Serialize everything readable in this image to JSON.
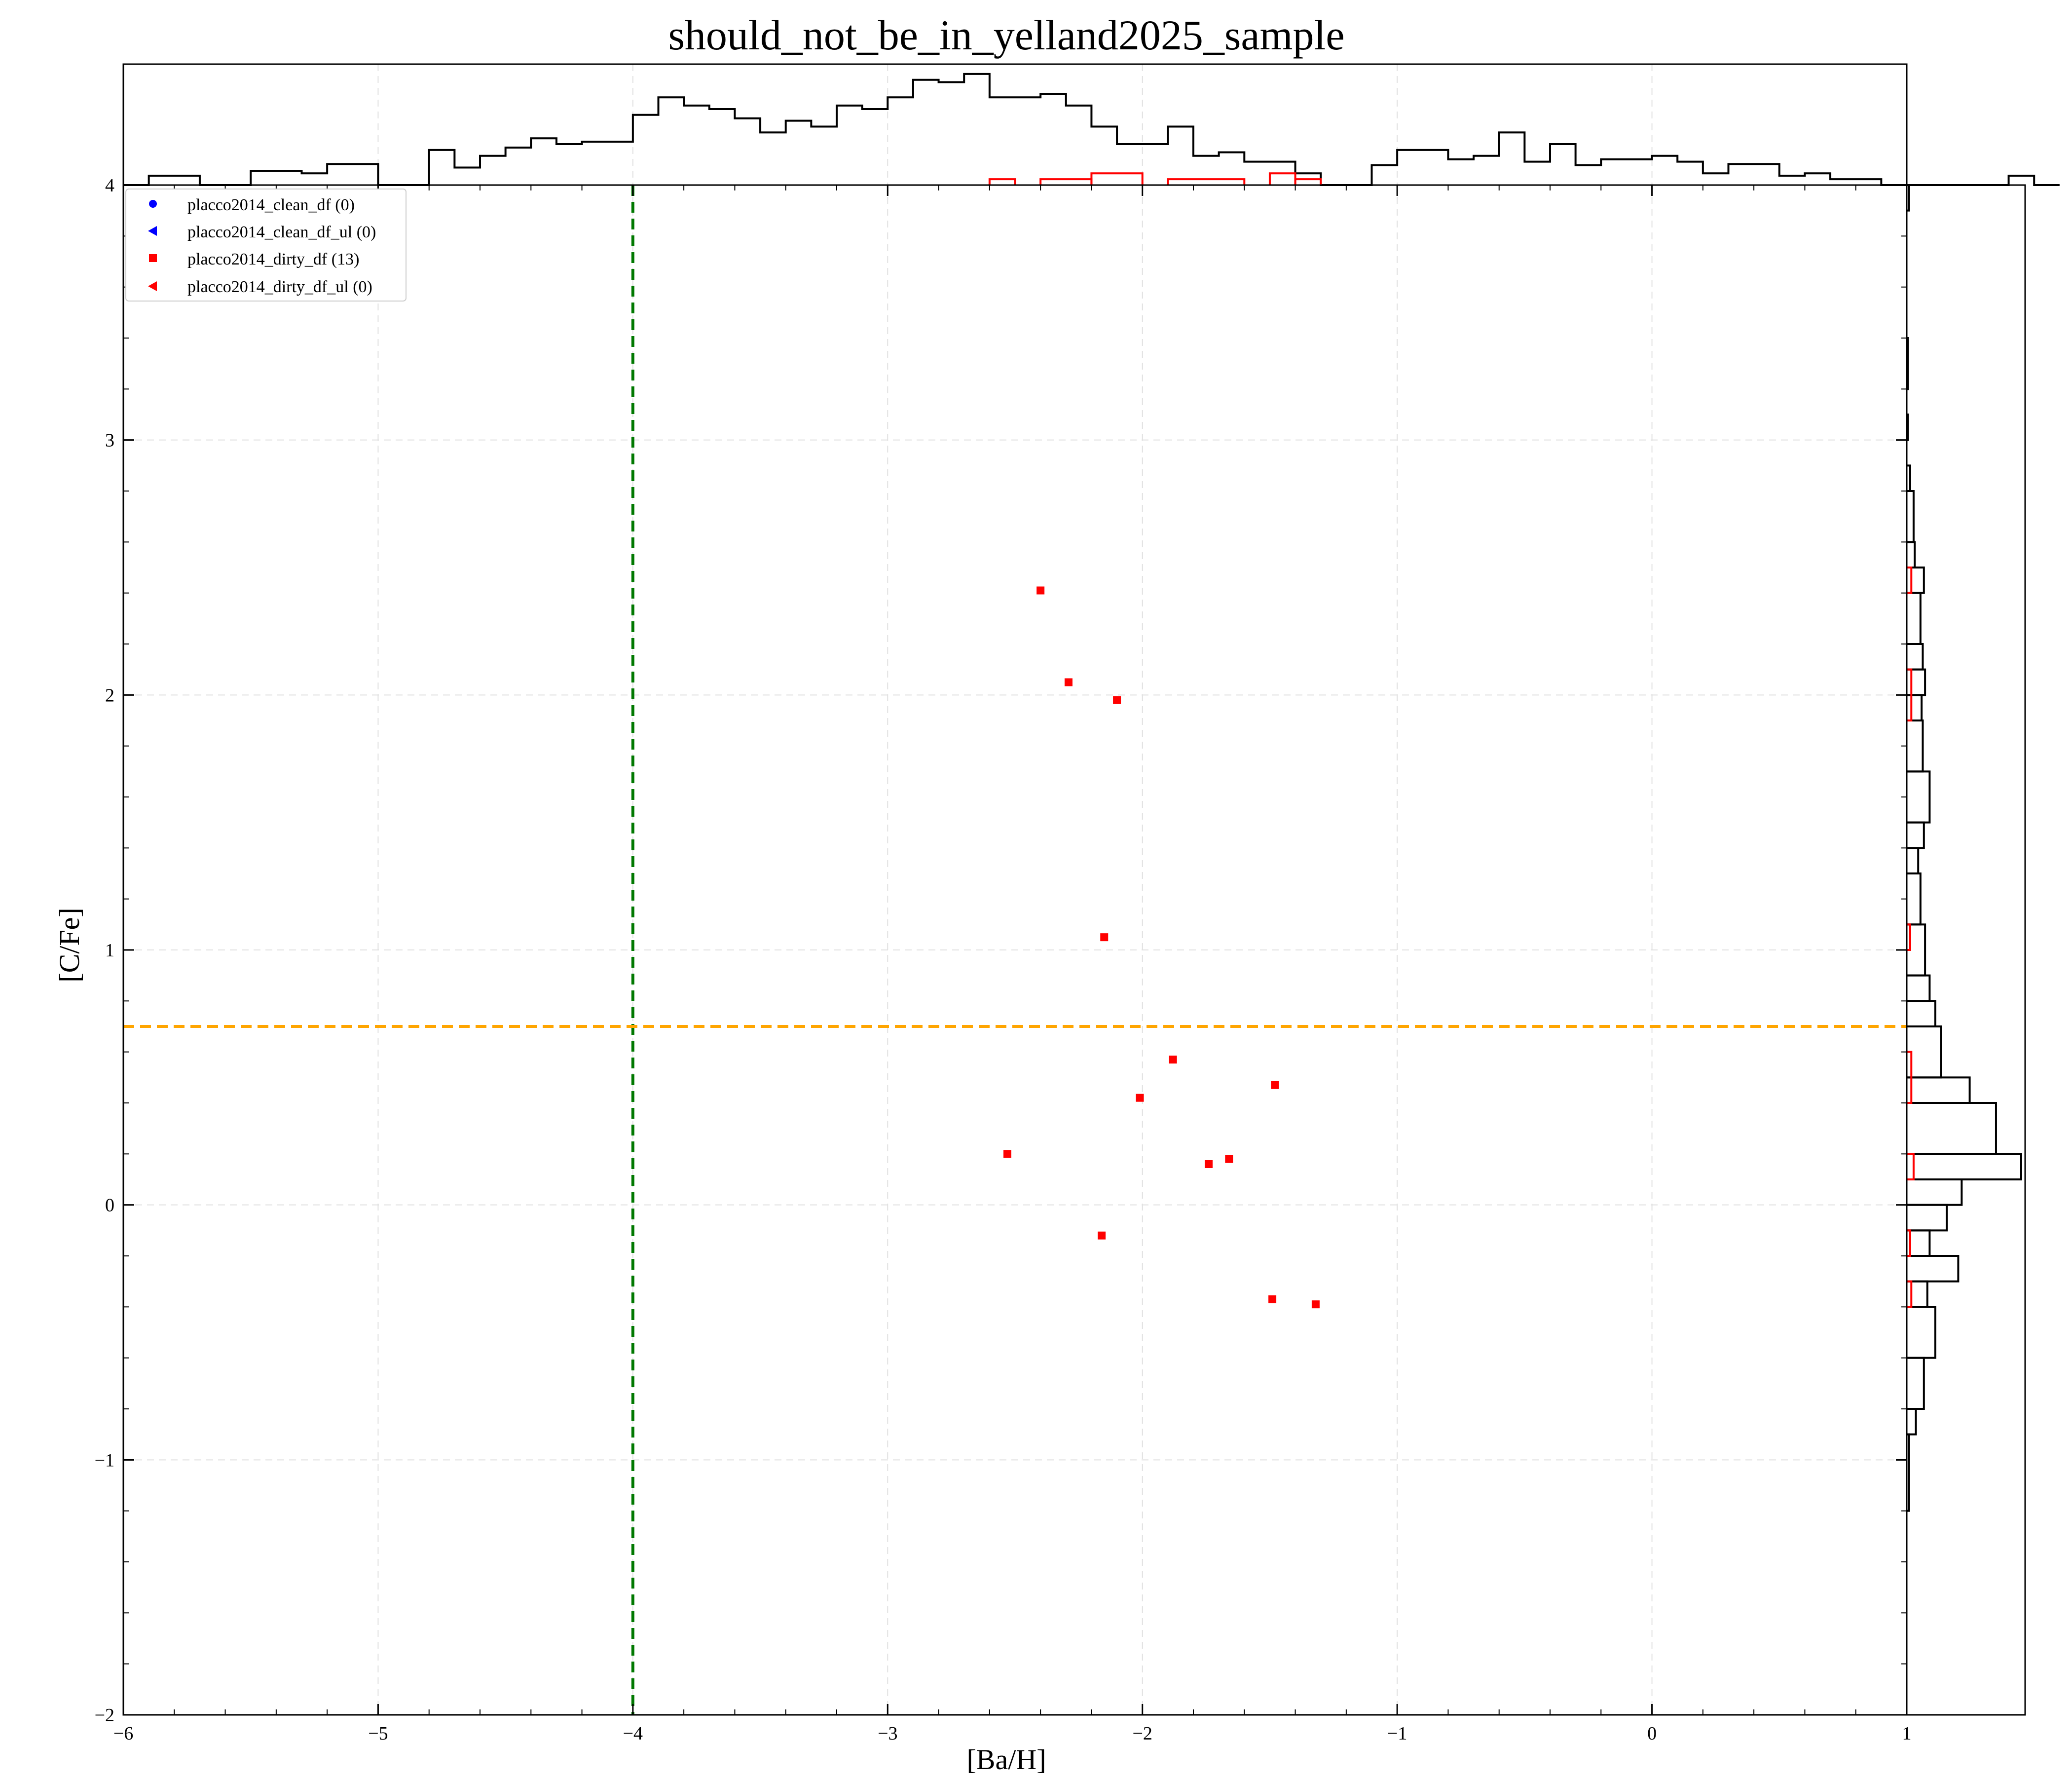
{
  "chart_data": {
    "type": "scatter",
    "title": "should_not_be_in_yelland2025_sample",
    "xlabel": "[Ba/H]",
    "ylabel": "[C/Fe]",
    "xlim": [
      -6,
      1
    ],
    "ylim": [
      -2,
      4
    ],
    "x_ticks": [
      -6,
      -5,
      -4,
      -3,
      -2,
      -1,
      0,
      1
    ],
    "y_ticks": [
      -2,
      -1,
      0,
      1,
      2,
      3,
      4
    ],
    "x_tick_labels": [
      "−6",
      "−5",
      "−4",
      "−3",
      "−2",
      "−1",
      "0",
      "1"
    ],
    "y_tick_labels": [
      "−2",
      "−1",
      "0",
      "1",
      "2",
      "3",
      "4"
    ],
    "grid": true,
    "legend_position": "top-left",
    "series": [
      {
        "name": "placco2014_clean_df (0)",
        "marker": "circle",
        "color": "#0000ff",
        "points": []
      },
      {
        "name": "placco2014_clean_df_ul (0)",
        "marker": "triangle-left",
        "color": "#0000ff",
        "points": []
      },
      {
        "name": "placco2014_dirty_df (13)",
        "marker": "square",
        "color": "#ff0000",
        "points": [
          [
            -2.4,
            2.41
          ],
          [
            -2.29,
            2.05
          ],
          [
            -2.1,
            1.98
          ],
          [
            -2.15,
            1.05
          ],
          [
            -1.88,
            0.57
          ],
          [
            -2.01,
            0.42
          ],
          [
            -1.48,
            0.47
          ],
          [
            -2.53,
            0.2
          ],
          [
            -1.74,
            0.16
          ],
          [
            -1.66,
            0.18
          ],
          [
            -2.16,
            -0.12
          ],
          [
            -1.49,
            -0.37
          ],
          [
            -1.32,
            -0.39
          ]
        ]
      },
      {
        "name": "placco2014_dirty_df_ul (0)",
        "marker": "triangle-left",
        "color": "#ff0000",
        "points": []
      }
    ],
    "reference_lines": [
      {
        "orientation": "vertical",
        "value": -4.0,
        "color": "#007800",
        "style": "dashed"
      },
      {
        "orientation": "horizontal",
        "value": 0.7,
        "color": "#ffa500",
        "style": "dashed"
      }
    ],
    "top_histogram": {
      "bin_start": -6.0,
      "bin_width": 0.1,
      "max_count": 100,
      "counts": [
        0,
        8,
        8,
        0,
        0,
        12,
        12,
        10,
        18,
        18,
        0,
        0,
        30,
        15,
        25,
        32,
        40,
        35,
        37,
        37,
        60,
        75,
        68,
        65,
        57,
        45,
        55,
        50,
        68,
        65,
        75,
        90,
        88,
        95,
        75,
        75,
        78,
        68,
        50,
        35,
        35,
        50,
        25,
        28,
        20,
        20,
        10,
        0,
        0,
        17,
        30,
        30,
        22,
        25,
        45,
        20,
        35,
        17,
        22,
        22,
        25,
        20,
        10,
        18,
        18,
        8,
        10,
        5,
        5,
        0,
        0,
        0,
        0,
        0,
        8,
        0
      ],
      "color": "#000000",
      "overlay_bins": [
        {
          "start": -2.6,
          "end": -2.5,
          "count": 5
        },
        {
          "start": -2.4,
          "end": -2.2,
          "count": 5
        },
        {
          "start": -2.2,
          "end": -2.0,
          "count": 10
        },
        {
          "start": -1.9,
          "end": -1.6,
          "count": 5
        },
        {
          "start": -1.5,
          "end": -1.4,
          "count": 10
        },
        {
          "start": -1.4,
          "end": -1.3,
          "count": 5
        }
      ],
      "overlay_color": "#ff0000"
    },
    "right_histogram": {
      "max_count": 100,
      "bins": [
        {
          "y0": 3.9,
          "y1": 4.0,
          "count": 2
        },
        {
          "y0": 3.2,
          "y1": 3.4,
          "count": 1
        },
        {
          "y0": 3.0,
          "y1": 3.1,
          "count": 1
        },
        {
          "y0": 2.8,
          "y1": 2.9,
          "count": 3
        },
        {
          "y0": 2.6,
          "y1": 2.8,
          "count": 6
        },
        {
          "y0": 2.5,
          "y1": 2.6,
          "count": 7
        },
        {
          "y0": 2.4,
          "y1": 2.5,
          "count": 15
        },
        {
          "y0": 2.2,
          "y1": 2.4,
          "count": 12
        },
        {
          "y0": 2.1,
          "y1": 2.2,
          "count": 14
        },
        {
          "y0": 2.0,
          "y1": 2.1,
          "count": 16
        },
        {
          "y0": 1.9,
          "y1": 2.0,
          "count": 13
        },
        {
          "y0": 1.7,
          "y1": 1.9,
          "count": 14
        },
        {
          "y0": 1.5,
          "y1": 1.7,
          "count": 20
        },
        {
          "y0": 1.4,
          "y1": 1.5,
          "count": 15
        },
        {
          "y0": 1.3,
          "y1": 1.4,
          "count": 10
        },
        {
          "y0": 1.1,
          "y1": 1.3,
          "count": 12
        },
        {
          "y0": 0.9,
          "y1": 1.1,
          "count": 16
        },
        {
          "y0": 0.8,
          "y1": 0.9,
          "count": 20
        },
        {
          "y0": 0.7,
          "y1": 0.8,
          "count": 25
        },
        {
          "y0": 0.5,
          "y1": 0.7,
          "count": 30
        },
        {
          "y0": 0.4,
          "y1": 0.5,
          "count": 55
        },
        {
          "y0": 0.2,
          "y1": 0.4,
          "count": 78
        },
        {
          "y0": 0.1,
          "y1": 0.2,
          "count": 100
        },
        {
          "y0": 0.0,
          "y1": 0.1,
          "count": 48
        },
        {
          "y0": -0.1,
          "y1": 0.0,
          "count": 35
        },
        {
          "y0": -0.2,
          "y1": -0.1,
          "count": 20
        },
        {
          "y0": -0.3,
          "y1": -0.2,
          "count": 45
        },
        {
          "y0": -0.4,
          "y1": -0.3,
          "count": 18
        },
        {
          "y0": -0.6,
          "y1": -0.4,
          "count": 25
        },
        {
          "y0": -0.8,
          "y1": -0.6,
          "count": 15
        },
        {
          "y0": -0.9,
          "y1": -0.8,
          "count": 8
        },
        {
          "y0": -1.2,
          "y1": -0.9,
          "count": 2
        }
      ],
      "color": "#000000",
      "overlay_bins": [
        {
          "y0": 2.4,
          "y1": 2.5,
          "count": 4
        },
        {
          "y0": 1.9,
          "y1": 2.1,
          "count": 4
        },
        {
          "y0": 1.0,
          "y1": 1.1,
          "count": 3
        },
        {
          "y0": 0.4,
          "y1": 0.6,
          "count": 4
        },
        {
          "y0": 0.1,
          "y1": 0.2,
          "count": 6
        },
        {
          "y0": -0.2,
          "y1": -0.1,
          "count": 3
        },
        {
          "y0": -0.4,
          "y1": -0.3,
          "count": 4
        }
      ],
      "overlay_color": "#ff0000"
    }
  }
}
